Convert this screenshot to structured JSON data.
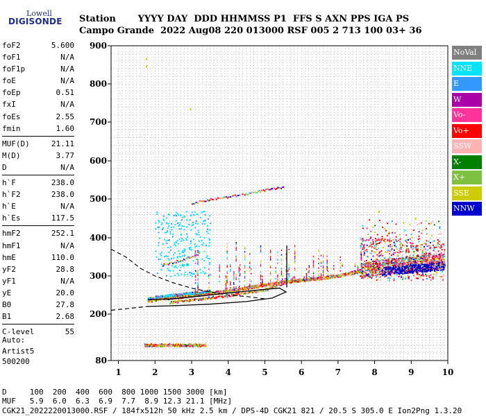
{
  "logo": {
    "line1": "Lowell",
    "line2": "DIGISONDE"
  },
  "header": {
    "row1": "Station       YYYY DAY  DDD HHMMSS P1  FFS S AXN PPS IGA PS",
    "row2": "Campo Grande  2022 Aug08 220 013000 RSF 005 2 713 100 03+ 36"
  },
  "params": [
    {
      "name": "foF2",
      "value": "5.600"
    },
    {
      "name": "foF1",
      "value": "N/A"
    },
    {
      "name": "foF1p",
      "value": "N/A"
    },
    {
      "name": "foE",
      "value": "N/A"
    },
    {
      "name": "foEp",
      "value": "0.51"
    },
    {
      "name": "fxI",
      "value": "N/A"
    },
    {
      "name": "foEs",
      "value": "2.55"
    },
    {
      "name": "fmin",
      "value": "1.60"
    },
    {
      "name": "---",
      "value": ""
    },
    {
      "name": "MUF(D)",
      "value": "21.11"
    },
    {
      "name": "M(D)",
      "value": "3.77"
    },
    {
      "name": "D",
      "value": "N/A"
    },
    {
      "name": "---",
      "value": ""
    },
    {
      "name": "h`F",
      "value": "238.0"
    },
    {
      "name": "h`F2",
      "value": "238.0"
    },
    {
      "name": "h`E",
      "value": "N/A"
    },
    {
      "name": "h`Es",
      "value": "117.5"
    },
    {
      "name": "---",
      "value": ""
    },
    {
      "name": "hmF2",
      "value": "252.1"
    },
    {
      "name": "hmF1",
      "value": "N/A"
    },
    {
      "name": "hmE",
      "value": "110.0"
    },
    {
      "name": "yF2",
      "value": "28.8"
    },
    {
      "name": "yF1",
      "value": "N/A"
    },
    {
      "name": "yE",
      "value": "20.0"
    },
    {
      "name": "B0",
      "value": "27.8"
    },
    {
      "name": "B1",
      "value": "2.68"
    },
    {
      "name": "---",
      "value": ""
    },
    {
      "name": "C-level",
      "value": "55"
    }
  ],
  "auto": {
    "line1": "Auto:",
    "line2": "Artist5",
    "line3": "500200"
  },
  "legend": [
    {
      "label": "NoVal",
      "bg": "#808080",
      "fg": "#ffffff"
    },
    {
      "label": "NNE",
      "bg": "#00e5ff",
      "fg": "#ffffff"
    },
    {
      "label": "E",
      "bg": "#3399ff",
      "fg": "#ffffff"
    },
    {
      "label": "W",
      "bg": "#aa00aa",
      "fg": "#ffffff"
    },
    {
      "label": "Vo-",
      "bg": "#ff3399",
      "fg": "#ffffff"
    },
    {
      "label": "Vo+",
      "bg": "#ff0000",
      "fg": "#ffffff"
    },
    {
      "label": "SSW",
      "bg": "#ffb3b3",
      "fg": "#ffffff"
    },
    {
      "label": "X-",
      "bg": "#008000",
      "fg": "#ffffff"
    },
    {
      "label": "X+",
      "bg": "#80c040",
      "fg": "#ffffff"
    },
    {
      "label": "SSE",
      "bg": "#cccc00",
      "fg": "#ffffff"
    },
    {
      "label": "NNW",
      "bg": "#0000cc",
      "fg": "#ffffff"
    }
  ],
  "bottom": {
    "line1": "D     100  200  400  600  800 1000 1500 3000 [km]",
    "line2": "MUF   5.9  6.0  6.3  6.9  7.7  8.9 12.3 21.1 [MHz]",
    "line3": "CGK21_2022220013000.RSF / 184fx512h 50 kHz 2.5 km / DPS-4D CGK21 821 / 20.5 S 305.0 E Ion2Png 1.3.20"
  },
  "chart_data": {
    "type": "scatter",
    "xlim": [
      0.8,
      10
    ],
    "ylim": [
      80,
      900
    ],
    "x_ticks": [
      "1",
      "2",
      "3",
      "4",
      "5",
      "6",
      "7",
      "8",
      "9",
      "10"
    ],
    "y_ticks": [
      "80",
      "200",
      "300",
      "400",
      "500",
      "600",
      "700",
      "800",
      "900"
    ],
    "grid": true,
    "legend_position": "right",
    "traces": {
      "o_trace": [
        [
          1.8,
          235
        ],
        [
          2.0,
          240
        ],
        [
          2.5,
          245
        ],
        [
          3.0,
          250
        ],
        [
          3.5,
          256
        ],
        [
          4.0,
          262
        ],
        [
          4.5,
          270
        ],
        [
          5.0,
          278
        ],
        [
          5.5,
          286
        ],
        [
          6.0,
          290
        ],
        [
          6.5,
          295
        ],
        [
          7.0,
          302
        ],
        [
          7.5,
          312
        ],
        [
          8.0,
          322
        ],
        [
          8.5,
          328
        ],
        [
          9.0,
          332
        ],
        [
          9.5,
          336
        ],
        [
          9.9,
          340
        ]
      ],
      "x_trace": [
        [
          2.4,
          232
        ],
        [
          3.0,
          238
        ],
        [
          4.0,
          250
        ],
        [
          5.0,
          265
        ],
        [
          5.6,
          285
        ],
        [
          5.8,
          300
        ]
      ],
      "es_trace": [
        [
          1.7,
          120
        ],
        [
          2.0,
          121
        ],
        [
          2.5,
          122
        ],
        [
          3.0,
          123
        ],
        [
          3.4,
          124
        ]
      ],
      "oblique_upper": [
        [
          3.0,
          490
        ],
        [
          3.5,
          500
        ],
        [
          4.0,
          507
        ],
        [
          4.5,
          515
        ],
        [
          5.0,
          525
        ],
        [
          5.5,
          532
        ]
      ],
      "oblique_lower": [
        [
          2.2,
          330
        ],
        [
          2.8,
          345
        ],
        [
          3.2,
          360
        ]
      ]
    },
    "profile_solid": [
      [
        1.8,
        238
      ],
      [
        2.5,
        240
      ],
      [
        3.0,
        245
      ],
      [
        3.5,
        250
      ],
      [
        4.0,
        255
      ],
      [
        4.5,
        260
      ],
      [
        5.0,
        265
      ],
      [
        5.4,
        268
      ],
      [
        5.58,
        258
      ],
      [
        5.2,
        242
      ],
      [
        4.5,
        233
      ],
      [
        3.5,
        226
      ],
      [
        2.5,
        222
      ],
      [
        1.8,
        220
      ]
    ],
    "profile_dashed_upper": [
      [
        0.8,
        370
      ],
      [
        1.2,
        350
      ],
      [
        1.6,
        320
      ],
      [
        2.0,
        300
      ],
      [
        2.5,
        282
      ],
      [
        3.0,
        268
      ],
      [
        3.5,
        258
      ],
      [
        4.0,
        250
      ],
      [
        4.5,
        246
      ],
      [
        5.0,
        240
      ]
    ],
    "profile_dashed_lower": [
      [
        0.8,
        210
      ],
      [
        1.2,
        214
      ],
      [
        1.6,
        218
      ],
      [
        1.8,
        220
      ]
    ],
    "vertical_line": {
      "x": 5.6,
      "y_from": 270,
      "y_to": 380
    }
  }
}
